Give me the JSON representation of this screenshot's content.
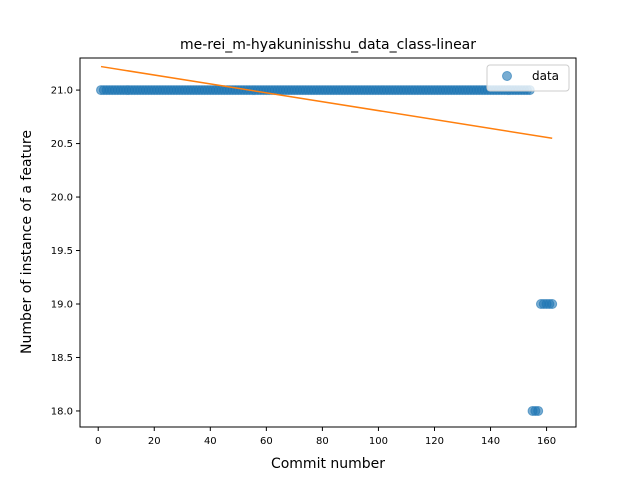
{
  "chart_data": {
    "type": "scatter",
    "title": "me-rei_m-hyakuninisshu_data_class-linear",
    "xlabel": "Commit number",
    "ylabel": "Number of instance of a feature",
    "xlim": [
      -6.5,
      170.5
    ],
    "ylim": [
      17.85,
      21.3
    ],
    "xticks": [
      0,
      20,
      40,
      60,
      80,
      100,
      120,
      140,
      160
    ],
    "yticks": [
      18.0,
      18.5,
      19.0,
      19.5,
      20.0,
      20.5,
      21.0
    ],
    "ytick_labels": [
      "18.0",
      "18.5",
      "19.0",
      "19.5",
      "20.0",
      "20.5",
      "21.0"
    ],
    "grid": false,
    "legend_position": "top-right",
    "series": [
      {
        "name": "data",
        "kind": "scatter",
        "color": "#1f77b4",
        "points": [
          {
            "x_range": [
              1,
              154
            ],
            "y": 21.0
          },
          {
            "x_range": [
              155,
              157
            ],
            "y": 18.0
          },
          {
            "x_range": [
              158,
              162
            ],
            "y": 19.0
          }
        ]
      },
      {
        "kind": "line",
        "color": "#ff7f0e",
        "x": [
          1,
          162
        ],
        "y": [
          21.22,
          20.55
        ]
      }
    ]
  }
}
